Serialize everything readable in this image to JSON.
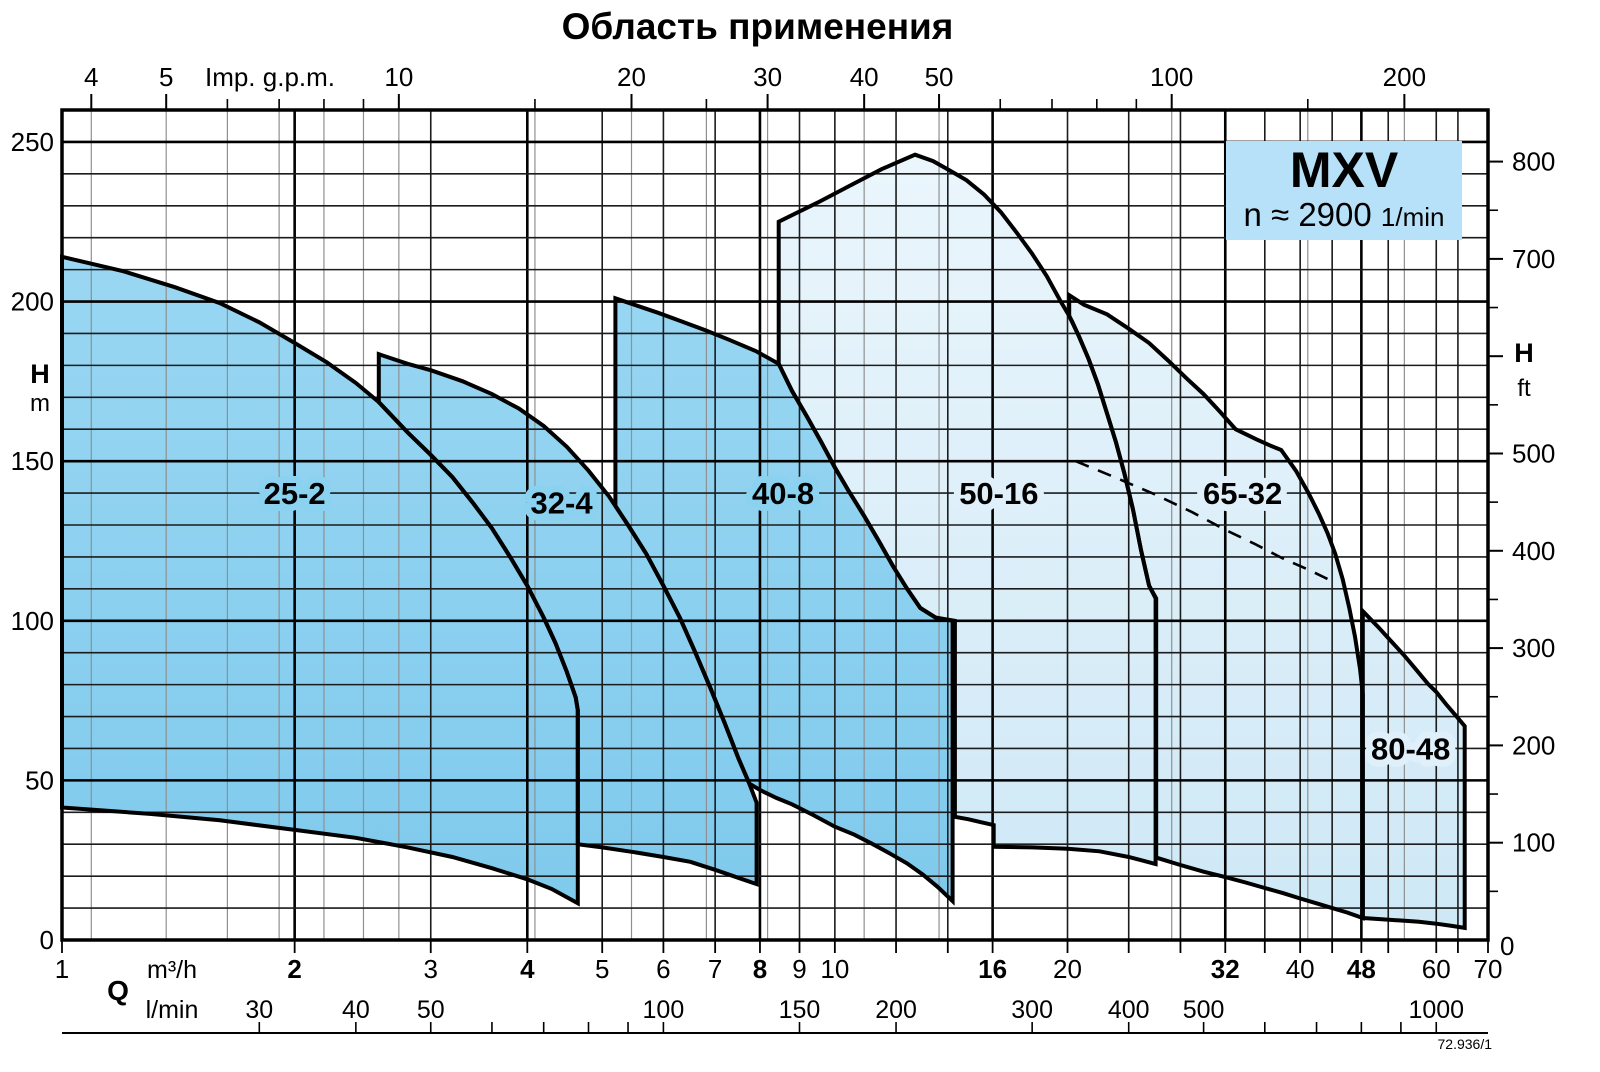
{
  "title": "Область применения",
  "footer_code": "72.936/1",
  "legend": {
    "model": "MXV",
    "speed": "n ≈ 2900",
    "speed_unit": "1/min",
    "bg": "#b7e1f8"
  },
  "colors": {
    "dark_top": "#9fdaf4",
    "dark_bottom": "#7ec9ec",
    "light_top": "#ecf6fc",
    "light_bottom": "#cee8f6",
    "outline": "#000000",
    "grid_minor": "#1c1c1c",
    "grid_major": "#000000",
    "grid_gray": "#909090",
    "halo_dark": "#8bd1f0",
    "halo_light": "#dff0fa"
  },
  "chart_data": {
    "type": "area",
    "title": "Область применения",
    "x_scale": "log",
    "x_unit_primary": "m³/h",
    "x_range": [
      1,
      70
    ],
    "y_range_m": [
      0,
      260
    ],
    "y_grid_minor_step_m": 10,
    "y_grid_major_step_m": 50,
    "axes": {
      "top_gpm": {
        "label": "Imp. g.p.m.",
        "labeled_ticks": [
          4,
          5,
          10,
          20,
          30,
          40,
          50,
          100,
          200
        ],
        "minor_ticks": [
          6,
          7,
          8,
          9,
          15,
          25,
          60,
          70,
          80,
          90,
          150
        ],
        "m3h_per_gpm": 0.2728
      },
      "bottom_m3h": {
        "label": "m³/h",
        "q_symbol": "Q",
        "labeled_ticks": [
          1,
          2,
          3,
          4,
          5,
          6,
          7,
          8,
          9,
          10,
          16,
          20,
          32,
          40,
          48,
          60,
          70
        ],
        "bold_ticks": [
          2,
          4,
          8,
          16,
          32,
          48
        ]
      },
      "bottom_lmin": {
        "label": "l/min",
        "labeled_ticks": [
          30,
          40,
          50,
          100,
          150,
          200,
          300,
          400,
          500,
          1000
        ],
        "minor_ticks": [
          60,
          70,
          80,
          90,
          600,
          700,
          800,
          900
        ],
        "m3h_per_lmin": 0.06
      },
      "left_m": {
        "label": "H",
        "unit": "m",
        "labeled_ticks": [
          0,
          50,
          100,
          150,
          200,
          250
        ]
      },
      "right_ft": {
        "label": "H",
        "unit": "ft",
        "labeled_ticks": [
          100,
          200,
          300,
          400,
          500,
          700,
          800
        ],
        "major_ticks": [
          100,
          200,
          300,
          400,
          500,
          600,
          700,
          800
        ],
        "minor_ticks": [
          50,
          150,
          250,
          350,
          450,
          550,
          650,
          750
        ],
        "zero_label": "0",
        "m_per_ft": 0.3048
      }
    },
    "gridlines": {
      "vertical_black": [
        3,
        5,
        6,
        7,
        9,
        10,
        12,
        14,
        20,
        24,
        28,
        36,
        40,
        44,
        52,
        60,
        64,
        70
      ],
      "vertical_bold": [
        2,
        4,
        8,
        16,
        32,
        48
      ],
      "vertical_gray_gpm": [
        4,
        5,
        6,
        7,
        8,
        9,
        10,
        15,
        20,
        25,
        30,
        40,
        50,
        100,
        150,
        200
      ]
    },
    "regions": [
      {
        "name": "25-2",
        "tone": "dark",
        "label": "25-2",
        "label_at": [
          2.0,
          140
        ],
        "outline": [
          [
            1,
            214
          ],
          [
            1.2,
            209.5
          ],
          [
            1.4,
            204.5
          ],
          [
            1.6,
            199.5
          ],
          [
            1.8,
            193.5
          ],
          [
            2,
            187
          ],
          [
            2.2,
            181
          ],
          [
            2.4,
            174.5
          ],
          [
            2.57,
            168.5
          ],
          [
            2.8,
            159
          ],
          [
            3,
            152
          ],
          [
            3.2,
            145
          ],
          [
            3.4,
            137
          ],
          [
            3.6,
            129
          ],
          [
            3.8,
            120
          ],
          [
            4,
            111
          ],
          [
            4.2,
            101
          ],
          [
            4.35,
            93
          ],
          [
            4.5,
            84
          ],
          [
            4.62,
            76
          ],
          [
            4.65,
            72
          ],
          [
            4.65,
            11.5
          ],
          [
            4.3,
            16
          ],
          [
            4,
            19
          ],
          [
            3.6,
            22.5
          ],
          [
            3.2,
            26
          ],
          [
            2.8,
            29
          ],
          [
            2.4,
            32
          ],
          [
            2,
            34.5
          ],
          [
            1.6,
            37.5
          ],
          [
            1.3,
            39.5
          ],
          [
            1,
            41.5
          ]
        ]
      },
      {
        "name": "32-4",
        "tone": "dark",
        "label": "32-4",
        "label_at": [
          4.43,
          137
        ],
        "outline": [
          [
            2.57,
            168.5
          ],
          [
            2.57,
            183.5
          ],
          [
            2.8,
            180.5
          ],
          [
            3,
            178.5
          ],
          [
            3.3,
            175
          ],
          [
            3.6,
            171
          ],
          [
            3.9,
            166.5
          ],
          [
            4.2,
            161
          ],
          [
            4.5,
            154.5
          ],
          [
            4.8,
            147
          ],
          [
            5.1,
            139
          ],
          [
            5.4,
            130
          ],
          [
            5.7,
            121
          ],
          [
            6,
            111
          ],
          [
            6.3,
            101
          ],
          [
            6.6,
            90
          ],
          [
            6.9,
            79
          ],
          [
            7.2,
            68
          ],
          [
            7.5,
            57
          ],
          [
            7.75,
            49
          ],
          [
            7.92,
            43
          ],
          [
            7.92,
            17.5
          ],
          [
            7.5,
            19.5
          ],
          [
            7,
            22
          ],
          [
            6.5,
            24.5
          ],
          [
            6,
            26
          ],
          [
            5.5,
            27.5
          ],
          [
            5,
            29
          ],
          [
            4.65,
            30
          ],
          [
            4.65,
            72
          ],
          [
            4.62,
            76
          ],
          [
            4.5,
            84
          ],
          [
            4.35,
            93
          ],
          [
            4.2,
            101
          ],
          [
            4,
            111
          ],
          [
            3.8,
            120
          ],
          [
            3.6,
            129
          ],
          [
            3.4,
            137
          ],
          [
            3.2,
            145
          ],
          [
            3,
            152
          ],
          [
            2.8,
            159
          ]
        ]
      },
      {
        "name": "40-8",
        "tone": "dark",
        "label": "40-8",
        "label_at": [
          8.57,
          140
        ],
        "outline": [
          [
            5.2,
            136
          ],
          [
            5.2,
            201
          ],
          [
            5.5,
            199
          ],
          [
            5.9,
            196.5
          ],
          [
            6.3,
            194
          ],
          [
            6.8,
            191
          ],
          [
            7.3,
            188
          ],
          [
            7.9,
            184.5
          ],
          [
            8.46,
            180.5
          ],
          [
            8.8,
            172
          ],
          [
            9.2,
            164
          ],
          [
            9.6,
            156
          ],
          [
            10,
            148
          ],
          [
            10.4,
            141
          ],
          [
            10.9,
            133
          ],
          [
            11.4,
            125
          ],
          [
            11.9,
            117
          ],
          [
            12.4,
            110
          ],
          [
            12.9,
            104
          ],
          [
            13.5,
            101
          ],
          [
            14.2,
            100
          ],
          [
            14.2,
            12.2
          ],
          [
            13.6,
            16.5
          ],
          [
            13,
            20.5
          ],
          [
            12.4,
            24
          ],
          [
            11.8,
            27
          ],
          [
            11.2,
            30
          ],
          [
            10.6,
            33
          ],
          [
            10,
            35.5
          ],
          [
            9.4,
            39
          ],
          [
            8.8,
            42.5
          ],
          [
            8.4,
            44.5
          ],
          [
            8,
            47
          ],
          [
            7.75,
            49
          ],
          [
            7.5,
            57
          ],
          [
            7.2,
            68
          ],
          [
            6.9,
            79
          ],
          [
            6.6,
            90
          ],
          [
            6.3,
            101
          ],
          [
            6,
            111
          ],
          [
            5.7,
            121
          ],
          [
            5.4,
            130
          ]
        ]
      },
      {
        "name": "50-16",
        "tone": "light",
        "label": "50-16",
        "label_at": [
          16.3,
          140
        ],
        "outline": [
          [
            8.46,
            180.5
          ],
          [
            8.46,
            225
          ],
          [
            9.5,
            231
          ],
          [
            10.5,
            236.5
          ],
          [
            11.5,
            241.5
          ],
          [
            12.7,
            246
          ],
          [
            13.4,
            244
          ],
          [
            14.1,
            241
          ],
          [
            14.8,
            238
          ],
          [
            15.6,
            233.5
          ],
          [
            16.4,
            228
          ],
          [
            17.2,
            221.5
          ],
          [
            18,
            215
          ],
          [
            18.8,
            208
          ],
          [
            19.6,
            200
          ],
          [
            20.1,
            195.5
          ],
          [
            20.7,
            189
          ],
          [
            21.3,
            182
          ],
          [
            21.9,
            174
          ],
          [
            22.5,
            165
          ],
          [
            23.1,
            156
          ],
          [
            23.7,
            146
          ],
          [
            24.3,
            135
          ],
          [
            24.9,
            122
          ],
          [
            25.5,
            111
          ],
          [
            26,
            107
          ],
          [
            26,
            23.8
          ],
          [
            24,
            26
          ],
          [
            22,
            27.8
          ],
          [
            20,
            28.6
          ],
          [
            18,
            29
          ],
          [
            16.05,
            29.2
          ],
          [
            16.05,
            36
          ],
          [
            15.4,
            37
          ],
          [
            14.9,
            37.8
          ],
          [
            14.3,
            38.6
          ],
          [
            14.3,
            100
          ],
          [
            13.5,
            101
          ],
          [
            12.9,
            104
          ],
          [
            12.4,
            110
          ],
          [
            11.9,
            117
          ],
          [
            11.4,
            125
          ],
          [
            10.9,
            133
          ],
          [
            10.4,
            141
          ],
          [
            10,
            148
          ],
          [
            9.6,
            156
          ],
          [
            9.2,
            164
          ],
          [
            8.8,
            172
          ]
        ]
      },
      {
        "name": "65-32",
        "tone": "light",
        "label": "65-32",
        "label_at": [
          33.7,
          140
        ],
        "outline": [
          [
            20.1,
            195.5
          ],
          [
            20.1,
            202
          ],
          [
            21,
            199
          ],
          [
            22.5,
            196
          ],
          [
            24,
            191.5
          ],
          [
            25.5,
            187
          ],
          [
            27,
            181.5
          ],
          [
            28.5,
            176
          ],
          [
            30,
            171
          ],
          [
            31.5,
            165.5
          ],
          [
            33,
            160
          ],
          [
            35,
            157
          ],
          [
            36.5,
            155
          ],
          [
            37.8,
            153.5
          ],
          [
            39.5,
            147
          ],
          [
            41,
            140
          ],
          [
            42.3,
            133.5
          ],
          [
            43.4,
            127.5
          ],
          [
            44.4,
            121
          ],
          [
            45.4,
            113
          ],
          [
            46.3,
            104
          ],
          [
            47.1,
            95
          ],
          [
            47.8,
            85
          ],
          [
            48.2,
            77
          ],
          [
            48.2,
            6.9
          ],
          [
            46,
            8.6
          ],
          [
            44,
            10
          ],
          [
            42,
            11.5
          ],
          [
            40,
            13
          ],
          [
            38,
            14.7
          ],
          [
            36,
            16.3
          ],
          [
            34,
            18
          ],
          [
            32,
            19.7
          ],
          [
            30,
            21.4
          ],
          [
            28,
            23.5
          ],
          [
            26.05,
            25.8
          ],
          [
            26.05,
            107
          ],
          [
            25.5,
            111
          ],
          [
            24.9,
            122
          ],
          [
            24.3,
            135
          ],
          [
            23.7,
            146
          ],
          [
            23.1,
            156
          ],
          [
            22.5,
            165
          ],
          [
            21.9,
            174
          ],
          [
            21.3,
            182
          ],
          [
            20.7,
            189
          ],
          [
            20.3,
            193.5
          ]
        ]
      },
      {
        "name": "80-48",
        "tone": "light",
        "label": "80-48",
        "label_at": [
          55.6,
          60
        ],
        "outline": [
          [
            48.2,
            103
          ],
          [
            50.5,
            98
          ],
          [
            52.5,
            93.5
          ],
          [
            54.6,
            89
          ],
          [
            56.6,
            84.5
          ],
          [
            58.5,
            80.3
          ],
          [
            60,
            77.7
          ],
          [
            61.8,
            73.8
          ],
          [
            63.6,
            70.3
          ],
          [
            65.3,
            67
          ],
          [
            65.3,
            3.8
          ],
          [
            63,
            4.4
          ],
          [
            60,
            5.1
          ],
          [
            57,
            5.7
          ],
          [
            54,
            6.1
          ],
          [
            51,
            6.5
          ],
          [
            48.2,
            6.9
          ]
        ]
      }
    ],
    "dashed_line": [
      [
        20.5,
        150
      ],
      [
        23,
        145
      ],
      [
        26,
        139.5
      ],
      [
        29,
        134
      ],
      [
        32,
        128.5
      ],
      [
        35,
        124
      ],
      [
        38,
        119.5
      ],
      [
        41,
        116
      ],
      [
        43.5,
        113
      ]
    ]
  }
}
